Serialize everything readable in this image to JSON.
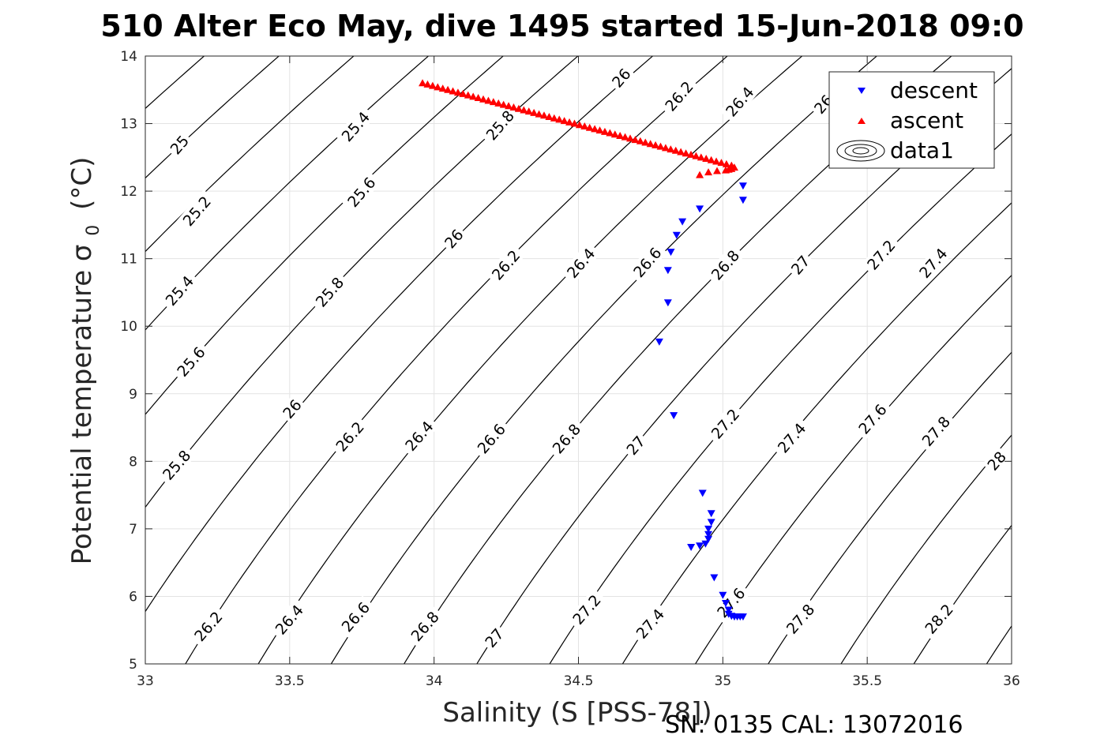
{
  "chart_data": {
    "type": "scatter",
    "title": "510 Alter Eco May, dive 1495 started 15-Jun-2018 09:0",
    "xlabel": "Salinity (S [PSS-78])",
    "ylabel_main": "Potential temperature σ",
    "ylabel_sub": "0",
    "ylabel_unit": "(°C)",
    "footer": "SN: 0135  CAL: 13072016",
    "xlim": [
      33,
      36
    ],
    "ylim": [
      5,
      14
    ],
    "x_ticks": [
      33,
      33.5,
      34,
      34.5,
      35,
      35.5,
      36
    ],
    "x_tick_labels": [
      "33",
      "33.5",
      "34",
      "34.5",
      "35",
      "35.5",
      "36"
    ],
    "y_ticks": [
      5,
      6,
      7,
      8,
      9,
      10,
      11,
      12,
      13,
      14
    ],
    "y_tick_labels": [
      "5",
      "6",
      "7",
      "8",
      "9",
      "10",
      "11",
      "12",
      "13",
      "14"
    ],
    "grid": true,
    "legend_position": "top-right",
    "legend": [
      {
        "name": "descent",
        "marker": "triangle-down",
        "color": "#0000ff"
      },
      {
        "name": "ascent",
        "marker": "triangle-up",
        "color": "#ff0000"
      },
      {
        "name": "data1",
        "marker": "contour",
        "color": "#000000"
      }
    ],
    "contours": {
      "levels": [
        25,
        25.2,
        25.4,
        25.6,
        25.8,
        26,
        26.2,
        26.4,
        26.6,
        26.8,
        27,
        27.2,
        27.4,
        27.6,
        27.8,
        28,
        28.2
      ],
      "labels": [
        {
          "text": "25",
          "S": 33.12,
          "T": 12.68
        },
        {
          "text": "25.2",
          "S": 33.18,
          "T": 11.7
        },
        {
          "text": "25.4",
          "S": 33.12,
          "T": 10.52
        },
        {
          "text": "25.6",
          "S": 33.16,
          "T": 9.47
        },
        {
          "text": "25.8",
          "S": 33.11,
          "T": 7.94
        },
        {
          "text": "26.2",
          "S": 33.22,
          "T": 5.55
        },
        {
          "text": "25.4",
          "S": 33.73,
          "T": 12.95
        },
        {
          "text": "25.6",
          "S": 33.75,
          "T": 11.98
        },
        {
          "text": "25.8",
          "S": 33.64,
          "T": 10.5
        },
        {
          "text": "26",
          "S": 33.51,
          "T": 8.77
        },
        {
          "text": "26.2",
          "S": 33.71,
          "T": 8.36
        },
        {
          "text": "26.4",
          "S": 33.5,
          "T": 5.65
        },
        {
          "text": "25.8",
          "S": 34.23,
          "T": 12.97
        },
        {
          "text": "26",
          "S": 34.07,
          "T": 11.29
        },
        {
          "text": "26.2",
          "S": 34.25,
          "T": 10.9
        },
        {
          "text": "26.4",
          "S": 33.95,
          "T": 8.37
        },
        {
          "text": "26.6",
          "S": 33.73,
          "T": 5.69
        },
        {
          "text": "26",
          "S": 34.65,
          "T": 13.67
        },
        {
          "text": "26.4",
          "S": 34.51,
          "T": 10.93
        },
        {
          "text": "26.6",
          "S": 34.2,
          "T": 8.33
        },
        {
          "text": "26.8",
          "S": 33.97,
          "T": 5.55
        },
        {
          "text": "26.2",
          "S": 34.85,
          "T": 13.4
        },
        {
          "text": "26.6",
          "S": 34.74,
          "T": 10.94
        },
        {
          "text": "26.8",
          "S": 34.46,
          "T": 8.33
        },
        {
          "text": "27",
          "S": 34.21,
          "T": 5.38
        },
        {
          "text": "26.4",
          "S": 35.06,
          "T": 13.32
        },
        {
          "text": "26.8",
          "S": 35.01,
          "T": 10.9
        },
        {
          "text": "27",
          "S": 34.7,
          "T": 8.23
        },
        {
          "text": "27.2",
          "S": 34.53,
          "T": 5.8
        },
        {
          "text": "26",
          "S": 35.35,
          "T": 13.28
        },
        {
          "text": "27",
          "S": 35.27,
          "T": 10.9
        },
        {
          "text": "27.2",
          "S": 35.01,
          "T": 8.55
        },
        {
          "text": "27.4",
          "S": 34.75,
          "T": 5.59
        },
        {
          "text": "27.2",
          "S": 35.55,
          "T": 11.05
        },
        {
          "text": "27.4",
          "S": 35.24,
          "T": 8.34
        },
        {
          "text": "27.6",
          "S": 35.03,
          "T": 5.9
        },
        {
          "text": "27.4",
          "S": 35.73,
          "T": 10.93
        },
        {
          "text": "27.6",
          "S": 35.52,
          "T": 8.62
        },
        {
          "text": "27.8",
          "S": 35.27,
          "T": 5.66
        },
        {
          "text": "27.8",
          "S": 35.74,
          "T": 8.44
        },
        {
          "text": "28",
          "S": 35.95,
          "T": 8.0
        },
        {
          "text": "28.2",
          "S": 35.75,
          "T": 5.66
        }
      ]
    },
    "series": [
      {
        "name": "descent",
        "marker": "triangle-down",
        "color": "#0000ff",
        "points": [
          [
            35.07,
            12.08
          ],
          [
            35.07,
            11.87
          ],
          [
            34.92,
            11.74
          ],
          [
            34.86,
            11.55
          ],
          [
            34.84,
            11.35
          ],
          [
            34.82,
            11.1
          ],
          [
            34.81,
            10.83
          ],
          [
            34.81,
            10.35
          ],
          [
            34.78,
            9.77
          ],
          [
            34.83,
            8.68
          ],
          [
            34.93,
            7.53
          ],
          [
            34.96,
            7.23
          ],
          [
            34.96,
            7.1
          ],
          [
            34.95,
            7.0
          ],
          [
            34.95,
            6.92
          ],
          [
            34.95,
            6.85
          ],
          [
            34.94,
            6.78
          ],
          [
            34.92,
            6.75
          ],
          [
            34.89,
            6.73
          ],
          [
            34.97,
            6.28
          ],
          [
            35.0,
            6.02
          ],
          [
            35.01,
            5.9
          ],
          [
            35.02,
            5.8
          ],
          [
            35.02,
            5.74
          ],
          [
            35.03,
            5.71
          ],
          [
            35.04,
            5.7
          ],
          [
            35.05,
            5.7
          ],
          [
            35.06,
            5.7
          ],
          [
            35.07,
            5.7
          ]
        ]
      },
      {
        "name": "ascent",
        "marker": "triangle-up",
        "color": "#ff0000",
        "points_linear": {
          "from": [
            33.96,
            13.6
          ],
          "to": [
            35.03,
            12.38
          ],
          "count": 62
        },
        "points": [
          [
            35.04,
            12.35
          ],
          [
            35.03,
            12.33
          ],
          [
            35.02,
            12.32
          ],
          [
            35.01,
            12.31
          ],
          [
            34.98,
            12.3
          ],
          [
            34.95,
            12.28
          ],
          [
            34.92,
            12.24
          ]
        ]
      }
    ]
  }
}
